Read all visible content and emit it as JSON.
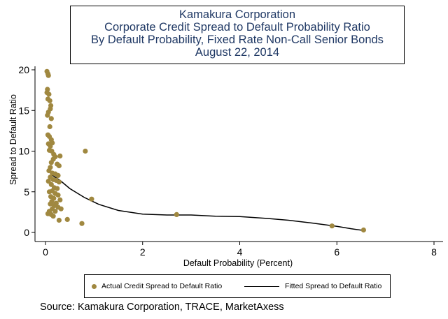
{
  "title_lines": [
    "Kamakura Corporation",
    "Corporate Credit Spread to Default Probability Ratio",
    "By Default Probability, Fixed Rate Non-Call Senior Bonds",
    "August 22, 2014"
  ],
  "source": "Source: Kamakura Corporation, TRACE, MarketAxess",
  "legend": {
    "actual": "Actual Credit Spread to Default Ratio",
    "fitted": "Fitted Spread to Default Ratio"
  },
  "colors": {
    "marker": "#a08840",
    "fitted_line": "#000000",
    "axis": "#000000"
  },
  "chart_data": {
    "type": "scatter",
    "title": "Kamakura Corporation Corporate Credit Spread to Default Probability Ratio By Default Probability, Fixed Rate Non-Call Senior Bonds August 22, 2014",
    "xlabel": "Default Probability (Percent)",
    "ylabel": "Spread to Default Ratio",
    "xlim": [
      0,
      8
    ],
    "ylim": [
      0,
      20
    ],
    "xticks": [
      "0",
      "2",
      "4",
      "6",
      "8"
    ],
    "yticks": [
      "0",
      "5",
      "10",
      "15",
      "20"
    ],
    "grid": false,
    "legend_position": "bottom",
    "series": [
      {
        "name": "Actual Credit Spread to Default Ratio",
        "kind": "scatter",
        "points": [
          [
            0.03,
            19.8
          ],
          [
            0.05,
            19.5
          ],
          [
            0.06,
            19.3
          ],
          [
            0.04,
            17.6
          ],
          [
            0.03,
            17.2
          ],
          [
            0.07,
            17.0
          ],
          [
            0.05,
            16.4
          ],
          [
            0.09,
            16.2
          ],
          [
            0.11,
            15.6
          ],
          [
            0.1,
            15.2
          ],
          [
            0.06,
            14.8
          ],
          [
            0.04,
            14.4
          ],
          [
            0.12,
            14.0
          ],
          [
            0.09,
            13.0
          ],
          [
            0.05,
            12.0
          ],
          [
            0.08,
            11.8
          ],
          [
            0.12,
            11.4
          ],
          [
            0.14,
            11.0
          ],
          [
            0.06,
            10.9
          ],
          [
            0.1,
            10.6
          ],
          [
            0.08,
            10.1
          ],
          [
            0.13,
            10.0
          ],
          [
            0.17,
            9.6
          ],
          [
            0.2,
            9.3
          ],
          [
            0.3,
            9.4
          ],
          [
            0.16,
            9.0
          ],
          [
            0.12,
            8.6
          ],
          [
            0.24,
            8.4
          ],
          [
            0.28,
            8.2
          ],
          [
            0.1,
            8.0
          ],
          [
            0.07,
            7.6
          ],
          [
            0.14,
            7.3
          ],
          [
            0.2,
            7.2
          ],
          [
            0.26,
            7.0
          ],
          [
            0.1,
            6.8
          ],
          [
            0.16,
            6.5
          ],
          [
            0.22,
            6.4
          ],
          [
            0.28,
            6.2
          ],
          [
            0.06,
            6.3
          ],
          [
            0.12,
            5.9
          ],
          [
            0.18,
            5.5
          ],
          [
            0.24,
            5.4
          ],
          [
            0.14,
            5.1
          ],
          [
            0.08,
            5.0
          ],
          [
            0.2,
            4.8
          ],
          [
            0.26,
            4.6
          ],
          [
            0.11,
            4.4
          ],
          [
            0.17,
            4.2
          ],
          [
            0.3,
            4.0
          ],
          [
            0.13,
            3.8
          ],
          [
            0.22,
            3.6
          ],
          [
            0.1,
            3.5
          ],
          [
            0.18,
            3.3
          ],
          [
            0.26,
            3.1
          ],
          [
            0.14,
            2.9
          ],
          [
            0.32,
            2.9
          ],
          [
            0.08,
            2.6
          ],
          [
            0.2,
            2.6
          ],
          [
            0.05,
            2.3
          ],
          [
            0.12,
            2.2
          ],
          [
            0.16,
            2.0
          ],
          [
            0.28,
            1.5
          ],
          [
            0.45,
            1.6
          ],
          [
            0.75,
            1.1
          ],
          [
            0.82,
            10.0
          ],
          [
            0.95,
            4.1
          ],
          [
            2.7,
            2.2
          ],
          [
            5.9,
            0.8
          ],
          [
            6.55,
            0.3
          ]
        ]
      },
      {
        "name": "Fitted Spread to Default Ratio",
        "kind": "line",
        "points": [
          [
            0.1,
            7.2
          ],
          [
            0.3,
            6.4
          ],
          [
            0.5,
            5.4
          ],
          [
            0.8,
            4.3
          ],
          [
            1.1,
            3.45
          ],
          [
            1.5,
            2.7
          ],
          [
            2.0,
            2.25
          ],
          [
            2.5,
            2.15
          ],
          [
            3.0,
            2.15
          ],
          [
            3.5,
            2.0
          ],
          [
            4.0,
            1.95
          ],
          [
            4.5,
            1.75
          ],
          [
            5.0,
            1.5
          ],
          [
            5.5,
            1.15
          ],
          [
            6.0,
            0.75
          ],
          [
            6.3,
            0.45
          ],
          [
            6.55,
            0.25
          ]
        ]
      }
    ]
  }
}
